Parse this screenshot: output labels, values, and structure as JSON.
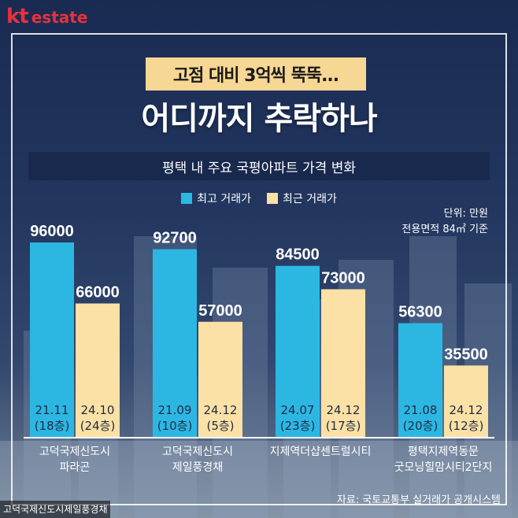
{
  "brand": {
    "kt": "kt",
    "estate": "estate",
    "color": "#e8323c"
  },
  "subtitle": "고점 대비 3억씩 뚝뚝...",
  "title": "어디까지 추락하나",
  "chart_data": {
    "type": "bar",
    "title": "평택 내 주요 국평아파트 가격 변화",
    "unit_lines": [
      "단위: 만원",
      "전용면적 84㎡ 기준"
    ],
    "series": [
      {
        "name": "최고 거래가",
        "color": "#2cb7e3",
        "values": [
          96000,
          92700,
          84500,
          56300
        ],
        "dates": [
          "21.11",
          "21.09",
          "24.07",
          "21.08"
        ],
        "floors": [
          "(18층)",
          "(10층)",
          "(23층)",
          "(20층)"
        ]
      },
      {
        "name": "최근 거래가",
        "color": "#fbe1a5",
        "values": [
          66000,
          57000,
          73000,
          35500
        ],
        "dates": [
          "24.10",
          "24.12",
          "24.12",
          "24.12"
        ],
        "floors": [
          "(24층)",
          "(5층)",
          "(17층)",
          "(12층)"
        ]
      }
    ],
    "categories": [
      [
        "고덕국제신도시",
        "파라곤"
      ],
      [
        "고덕국제신도시",
        "제일풍경채"
      ],
      [
        "지제역더샵센트럴시티"
      ],
      [
        "평택지제역동문",
        "굿모닝힐맘시티2단지"
      ]
    ],
    "ylim": [
      0,
      100000
    ]
  },
  "source": "자료: 국토교통부 실거래가 공개시스템",
  "caption": "고덕국제신도시제일풍경채"
}
